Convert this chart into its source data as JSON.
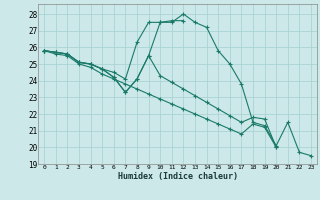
{
  "title": "",
  "xlabel": "Humidex (Indice chaleur)",
  "ylabel": "",
  "xlim": [
    -0.5,
    23.5
  ],
  "ylim": [
    19,
    28.6
  ],
  "yticks": [
    19,
    20,
    21,
    22,
    23,
    24,
    25,
    26,
    27,
    28
  ],
  "xticks": [
    0,
    1,
    2,
    3,
    4,
    5,
    6,
    7,
    8,
    9,
    10,
    11,
    12,
    13,
    14,
    15,
    16,
    17,
    18,
    19,
    20,
    21,
    22,
    23
  ],
  "bg_color": "#cce8e8",
  "grid_color": "#aad4d4",
  "line_color": "#1a7a6a",
  "marker": "+",
  "lines": [
    [
      25.8,
      25.7,
      25.6,
      25.1,
      25.0,
      24.7,
      24.2,
      23.3,
      24.1,
      25.5,
      27.5,
      27.5,
      28.0,
      27.5,
      27.2,
      25.8,
      25.0,
      23.8,
      21.5,
      21.3,
      20.1,
      21.5,
      19.7,
      19.5
    ],
    [
      25.8,
      25.7,
      25.6,
      25.1,
      25.0,
      24.7,
      24.5,
      24.1,
      26.3,
      27.5,
      27.5,
      27.6,
      27.6,
      null,
      null,
      null,
      null,
      null,
      null,
      null,
      null,
      null,
      null,
      null
    ],
    [
      25.8,
      25.7,
      25.6,
      25.1,
      25.0,
      24.7,
      24.2,
      23.3,
      24.1,
      25.5,
      24.3,
      23.9,
      23.5,
      23.1,
      22.7,
      22.3,
      21.9,
      21.5,
      21.8,
      21.7,
      20.0,
      null,
      null,
      null
    ],
    [
      25.8,
      25.6,
      25.5,
      25.0,
      24.8,
      24.4,
      24.1,
      23.8,
      23.5,
      23.2,
      22.9,
      22.6,
      22.3,
      22.0,
      21.7,
      21.4,
      21.1,
      20.8,
      21.4,
      21.2,
      20.0,
      null,
      null,
      null
    ]
  ]
}
